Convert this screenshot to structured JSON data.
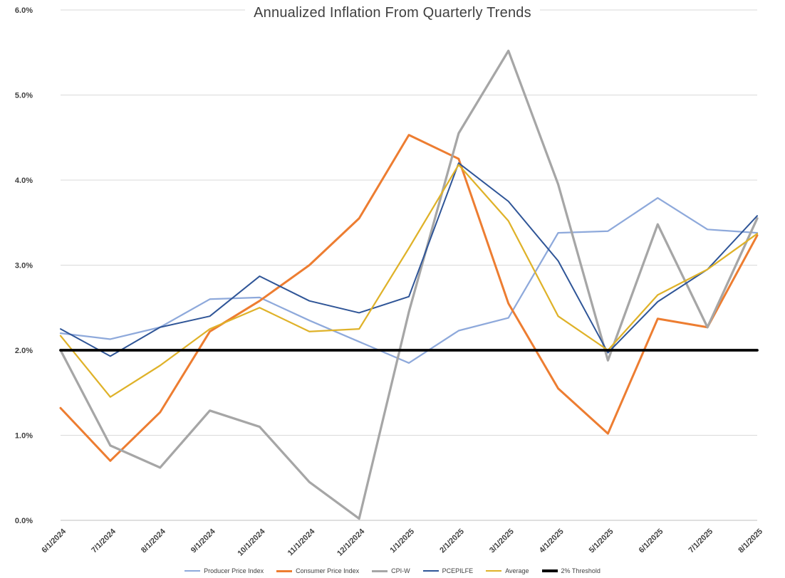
{
  "chart_data": {
    "type": "line",
    "title": "Annualized Inflation From Quarterly Trends",
    "x_labels": [
      "6/1/2024",
      "7/1/2024",
      "8/1/2024",
      "9/1/2024",
      "10/1/2024",
      "11/1/2024",
      "12/1/2024",
      "1/1/2025",
      "2/1/2025",
      "3/1/2025",
      "4/1/2025",
      "5/1/2025",
      "6/1/2025",
      "7/1/2025",
      "8/1/2025"
    ],
    "y_ticks": [
      "0.0%",
      "1.0%",
      "2.0%",
      "3.0%",
      "4.0%",
      "5.0%",
      "6.0%"
    ],
    "y_min": 0,
    "y_max": 6,
    "grid": true,
    "legend_position": "bottom",
    "series": [
      {
        "name": "Producer Price Index",
        "color": "#8EA9DB",
        "width": 2.25,
        "values": [
          2.2,
          2.13,
          2.27,
          2.6,
          2.62,
          2.35,
          2.1,
          1.85,
          2.23,
          2.38,
          3.38,
          3.4,
          3.79,
          3.42,
          3.38
        ]
      },
      {
        "name": "Consumer Price Index",
        "color": "#ED7D31",
        "width": 3,
        "values": [
          1.32,
          0.7,
          1.27,
          2.22,
          2.58,
          3.0,
          3.55,
          4.53,
          4.25,
          2.55,
          1.55,
          1.02,
          2.37,
          2.27,
          3.35
        ]
      },
      {
        "name": "CPI-W",
        "color": "#A6A6A6",
        "width": 3.25,
        "values": [
          2.0,
          0.88,
          0.62,
          1.29,
          1.1,
          0.45,
          0.02,
          2.45,
          4.55,
          5.52,
          3.95,
          1.88,
          3.48,
          2.27,
          3.55
        ]
      },
      {
        "name": "PCEPILFE",
        "color": "#2F5597",
        "width": 2,
        "values": [
          2.25,
          1.93,
          2.27,
          2.4,
          2.87,
          2.58,
          2.44,
          2.63,
          4.2,
          3.75,
          3.05,
          1.97,
          2.57,
          2.95,
          3.58
        ]
      },
      {
        "name": "Average",
        "color": "#DFB229",
        "width": 2.25,
        "values": [
          2.17,
          1.45,
          1.82,
          2.25,
          2.5,
          2.22,
          2.25,
          3.2,
          4.18,
          3.52,
          2.4,
          2.0,
          2.65,
          2.95,
          3.37
        ]
      },
      {
        "name": "2% Threshold",
        "color": "#000000",
        "width": 3.75,
        "values": [
          2.0,
          2.0,
          2.0,
          2.0,
          2.0,
          2.0,
          2.0,
          2.0,
          2.0,
          2.0,
          2.0,
          2.0,
          2.0,
          2.0,
          2.0
        ]
      }
    ]
  },
  "colors": {
    "background": "#FFFFFF",
    "grid": "#D9D9D9",
    "axis": "#BFBFBF",
    "tick_label": "#404040",
    "title": "#404040"
  }
}
